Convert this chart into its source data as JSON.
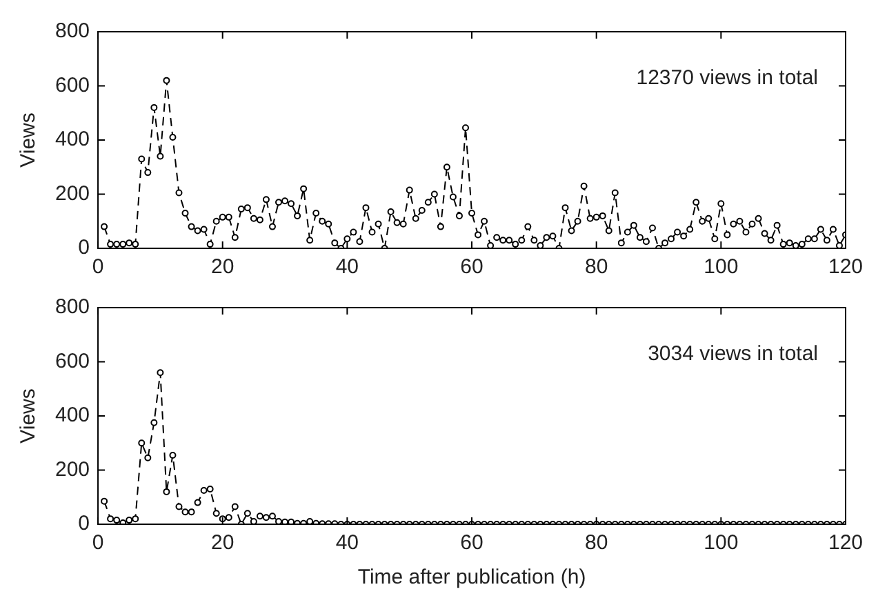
{
  "chart_data": [
    {
      "type": "line",
      "ylabel": "Views",
      "annotations": [
        "12370 views in total"
      ],
      "marker": "circle",
      "line_style": "dashed",
      "xlim": [
        0,
        120
      ],
      "xticks": [
        0,
        20,
        40,
        60,
        80,
        100,
        120
      ],
      "ylim": [
        0,
        800
      ],
      "yticks": [
        0,
        200,
        400,
        600,
        800
      ],
      "x": [
        1,
        2,
        3,
        4,
        5,
        6,
        7,
        8,
        9,
        10,
        11,
        12,
        13,
        14,
        15,
        16,
        17,
        18,
        19,
        20,
        21,
        22,
        23,
        24,
        25,
        26,
        27,
        28,
        29,
        30,
        31,
        32,
        33,
        34,
        35,
        36,
        37,
        38,
        39,
        40,
        41,
        42,
        43,
        44,
        45,
        46,
        47,
        48,
        49,
        50,
        51,
        52,
        53,
        54,
        55,
        56,
        57,
        58,
        59,
        60,
        61,
        62,
        63,
        64,
        65,
        66,
        67,
        68,
        69,
        70,
        71,
        72,
        73,
        74,
        75,
        76,
        77,
        78,
        79,
        80,
        81,
        82,
        83,
        84,
        85,
        86,
        87,
        88,
        89,
        90,
        91,
        92,
        93,
        94,
        95,
        96,
        97,
        98,
        99,
        100,
        101,
        102,
        103,
        104,
        105,
        106,
        107,
        108,
        109,
        110,
        111,
        112,
        113,
        114,
        115,
        116,
        117,
        118,
        119,
        120
      ],
      "series": [
        {
          "color": "#000000",
          "values": [
            80,
            15,
            15,
            15,
            20,
            15,
            330,
            280,
            520,
            340,
            620,
            410,
            205,
            130,
            80,
            65,
            70,
            15,
            100,
            115,
            115,
            40,
            145,
            150,
            110,
            105,
            180,
            80,
            170,
            175,
            165,
            120,
            220,
            30,
            130,
            100,
            90,
            20,
            0,
            35,
            60,
            25,
            150,
            60,
            90,
            0,
            135,
            95,
            90,
            215,
            110,
            140,
            170,
            200,
            80,
            300,
            190,
            120,
            445,
            130,
            50,
            100,
            10,
            40,
            30,
            30,
            15,
            30,
            80,
            30,
            10,
            40,
            45,
            0,
            150,
            65,
            100,
            230,
            110,
            115,
            120,
            65,
            205,
            20,
            60,
            85,
            40,
            25,
            75,
            0,
            20,
            35,
            60,
            45,
            70,
            170,
            100,
            110,
            35,
            165,
            50,
            90,
            100,
            60,
            90,
            110,
            55,
            30,
            85,
            15,
            20,
            10,
            15,
            35,
            35,
            70,
            30,
            70,
            10,
            50
          ]
        }
      ]
    },
    {
      "type": "line",
      "ylabel": "Views",
      "xlabel": "Time after publication (h)",
      "annotations": [
        "3034 views in total"
      ],
      "marker": "circle",
      "line_style": "dashed",
      "xlim": [
        0,
        120
      ],
      "xticks": [
        0,
        20,
        40,
        60,
        80,
        100,
        120
      ],
      "ylim": [
        0,
        800
      ],
      "yticks": [
        0,
        200,
        400,
        600,
        800
      ],
      "x": [
        1,
        2,
        3,
        4,
        5,
        6,
        7,
        8,
        9,
        10,
        11,
        12,
        13,
        14,
        15,
        16,
        17,
        18,
        19,
        20,
        21,
        22,
        23,
        24,
        25,
        26,
        27,
        28,
        29,
        30,
        31,
        32,
        33,
        34,
        35,
        36,
        37,
        38,
        39,
        40,
        41,
        42,
        43,
        44,
        45,
        46,
        47,
        48,
        49,
        50,
        51,
        52,
        53,
        54,
        55,
        56,
        57,
        58,
        59,
        60,
        61,
        62,
        63,
        64,
        65,
        66,
        67,
        68,
        69,
        70,
        71,
        72,
        73,
        74,
        75,
        76,
        77,
        78,
        79,
        80,
        81,
        82,
        83,
        84,
        85,
        86,
        87,
        88,
        89,
        90,
        91,
        92,
        93,
        94,
        95,
        96,
        97,
        98,
        99,
        100,
        101,
        102,
        103,
        104,
        105,
        106,
        107,
        108,
        109,
        110,
        111,
        112,
        113,
        114,
        115,
        116,
        117,
        118,
        119,
        120
      ],
      "series": [
        {
          "color": "#000000",
          "values": [
            85,
            20,
            15,
            5,
            15,
            20,
            300,
            245,
            375,
            560,
            120,
            255,
            65,
            45,
            45,
            80,
            125,
            130,
            40,
            20,
            25,
            65,
            0,
            40,
            10,
            30,
            25,
            30,
            10,
            8,
            8,
            3,
            3,
            10,
            3,
            2,
            2,
            2,
            0,
            0,
            0,
            0,
            0,
            0,
            0,
            0,
            0,
            0,
            0,
            0,
            0,
            0,
            0,
            0,
            0,
            0,
            0,
            0,
            0,
            0,
            0,
            0,
            0,
            0,
            0,
            0,
            0,
            0,
            0,
            0,
            0,
            0,
            0,
            0,
            0,
            0,
            0,
            0,
            0,
            0,
            0,
            0,
            0,
            0,
            0,
            0,
            0,
            0,
            0,
            0,
            0,
            0,
            0,
            0,
            0,
            0,
            0,
            0,
            0,
            0,
            0,
            0,
            0,
            0,
            0,
            0,
            0,
            0,
            0,
            0,
            0,
            0,
            0,
            0,
            0,
            0,
            0,
            0,
            0,
            0
          ]
        }
      ]
    }
  ]
}
